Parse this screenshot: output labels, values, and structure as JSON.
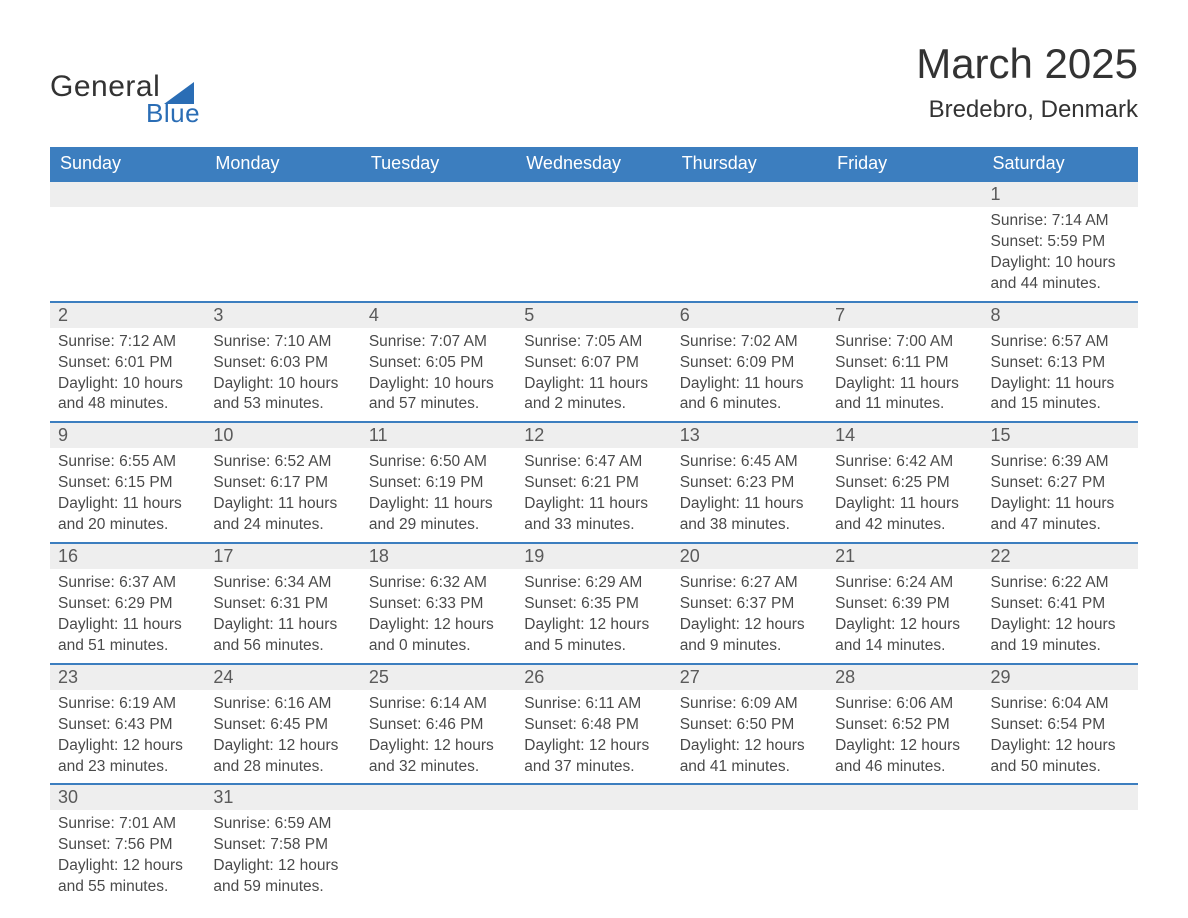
{
  "logo": {
    "text_main": "General",
    "text_sub": "Blue",
    "shape_color": "#2a6db5"
  },
  "title": "March 2025",
  "subtitle": "Bredebro, Denmark",
  "colors": {
    "header_bg": "#3c7ebf",
    "header_text": "#ffffff",
    "daynum_bg": "#eeeeee",
    "row_border": "#3c7ebf",
    "body_text": "#4a4a4a",
    "title_text": "#333333",
    "page_bg": "#ffffff"
  },
  "typography": {
    "title_fontsize": 42,
    "subtitle_fontsize": 24,
    "header_fontsize": 18,
    "daynum_fontsize": 18,
    "detail_fontsize": 15.5,
    "font_family": "Arial"
  },
  "day_headers": [
    "Sunday",
    "Monday",
    "Tuesday",
    "Wednesday",
    "Thursday",
    "Friday",
    "Saturday"
  ],
  "weeks": [
    [
      null,
      null,
      null,
      null,
      null,
      null,
      {
        "num": "1",
        "sunrise": "Sunrise: 7:14 AM",
        "sunset": "Sunset: 5:59 PM",
        "day1": "Daylight: 10 hours",
        "day2": "and 44 minutes."
      }
    ],
    [
      {
        "num": "2",
        "sunrise": "Sunrise: 7:12 AM",
        "sunset": "Sunset: 6:01 PM",
        "day1": "Daylight: 10 hours",
        "day2": "and 48 minutes."
      },
      {
        "num": "3",
        "sunrise": "Sunrise: 7:10 AM",
        "sunset": "Sunset: 6:03 PM",
        "day1": "Daylight: 10 hours",
        "day2": "and 53 minutes."
      },
      {
        "num": "4",
        "sunrise": "Sunrise: 7:07 AM",
        "sunset": "Sunset: 6:05 PM",
        "day1": "Daylight: 10 hours",
        "day2": "and 57 minutes."
      },
      {
        "num": "5",
        "sunrise": "Sunrise: 7:05 AM",
        "sunset": "Sunset: 6:07 PM",
        "day1": "Daylight: 11 hours",
        "day2": "and 2 minutes."
      },
      {
        "num": "6",
        "sunrise": "Sunrise: 7:02 AM",
        "sunset": "Sunset: 6:09 PM",
        "day1": "Daylight: 11 hours",
        "day2": "and 6 minutes."
      },
      {
        "num": "7",
        "sunrise": "Sunrise: 7:00 AM",
        "sunset": "Sunset: 6:11 PM",
        "day1": "Daylight: 11 hours",
        "day2": "and 11 minutes."
      },
      {
        "num": "8",
        "sunrise": "Sunrise: 6:57 AM",
        "sunset": "Sunset: 6:13 PM",
        "day1": "Daylight: 11 hours",
        "day2": "and 15 minutes."
      }
    ],
    [
      {
        "num": "9",
        "sunrise": "Sunrise: 6:55 AM",
        "sunset": "Sunset: 6:15 PM",
        "day1": "Daylight: 11 hours",
        "day2": "and 20 minutes."
      },
      {
        "num": "10",
        "sunrise": "Sunrise: 6:52 AM",
        "sunset": "Sunset: 6:17 PM",
        "day1": "Daylight: 11 hours",
        "day2": "and 24 minutes."
      },
      {
        "num": "11",
        "sunrise": "Sunrise: 6:50 AM",
        "sunset": "Sunset: 6:19 PM",
        "day1": "Daylight: 11 hours",
        "day2": "and 29 minutes."
      },
      {
        "num": "12",
        "sunrise": "Sunrise: 6:47 AM",
        "sunset": "Sunset: 6:21 PM",
        "day1": "Daylight: 11 hours",
        "day2": "and 33 minutes."
      },
      {
        "num": "13",
        "sunrise": "Sunrise: 6:45 AM",
        "sunset": "Sunset: 6:23 PM",
        "day1": "Daylight: 11 hours",
        "day2": "and 38 minutes."
      },
      {
        "num": "14",
        "sunrise": "Sunrise: 6:42 AM",
        "sunset": "Sunset: 6:25 PM",
        "day1": "Daylight: 11 hours",
        "day2": "and 42 minutes."
      },
      {
        "num": "15",
        "sunrise": "Sunrise: 6:39 AM",
        "sunset": "Sunset: 6:27 PM",
        "day1": "Daylight: 11 hours",
        "day2": "and 47 minutes."
      }
    ],
    [
      {
        "num": "16",
        "sunrise": "Sunrise: 6:37 AM",
        "sunset": "Sunset: 6:29 PM",
        "day1": "Daylight: 11 hours",
        "day2": "and 51 minutes."
      },
      {
        "num": "17",
        "sunrise": "Sunrise: 6:34 AM",
        "sunset": "Sunset: 6:31 PM",
        "day1": "Daylight: 11 hours",
        "day2": "and 56 minutes."
      },
      {
        "num": "18",
        "sunrise": "Sunrise: 6:32 AM",
        "sunset": "Sunset: 6:33 PM",
        "day1": "Daylight: 12 hours",
        "day2": "and 0 minutes."
      },
      {
        "num": "19",
        "sunrise": "Sunrise: 6:29 AM",
        "sunset": "Sunset: 6:35 PM",
        "day1": "Daylight: 12 hours",
        "day2": "and 5 minutes."
      },
      {
        "num": "20",
        "sunrise": "Sunrise: 6:27 AM",
        "sunset": "Sunset: 6:37 PM",
        "day1": "Daylight: 12 hours",
        "day2": "and 9 minutes."
      },
      {
        "num": "21",
        "sunrise": "Sunrise: 6:24 AM",
        "sunset": "Sunset: 6:39 PM",
        "day1": "Daylight: 12 hours",
        "day2": "and 14 minutes."
      },
      {
        "num": "22",
        "sunrise": "Sunrise: 6:22 AM",
        "sunset": "Sunset: 6:41 PM",
        "day1": "Daylight: 12 hours",
        "day2": "and 19 minutes."
      }
    ],
    [
      {
        "num": "23",
        "sunrise": "Sunrise: 6:19 AM",
        "sunset": "Sunset: 6:43 PM",
        "day1": "Daylight: 12 hours",
        "day2": "and 23 minutes."
      },
      {
        "num": "24",
        "sunrise": "Sunrise: 6:16 AM",
        "sunset": "Sunset: 6:45 PM",
        "day1": "Daylight: 12 hours",
        "day2": "and 28 minutes."
      },
      {
        "num": "25",
        "sunrise": "Sunrise: 6:14 AM",
        "sunset": "Sunset: 6:46 PM",
        "day1": "Daylight: 12 hours",
        "day2": "and 32 minutes."
      },
      {
        "num": "26",
        "sunrise": "Sunrise: 6:11 AM",
        "sunset": "Sunset: 6:48 PM",
        "day1": "Daylight: 12 hours",
        "day2": "and 37 minutes."
      },
      {
        "num": "27",
        "sunrise": "Sunrise: 6:09 AM",
        "sunset": "Sunset: 6:50 PM",
        "day1": "Daylight: 12 hours",
        "day2": "and 41 minutes."
      },
      {
        "num": "28",
        "sunrise": "Sunrise: 6:06 AM",
        "sunset": "Sunset: 6:52 PM",
        "day1": "Daylight: 12 hours",
        "day2": "and 46 minutes."
      },
      {
        "num": "29",
        "sunrise": "Sunrise: 6:04 AM",
        "sunset": "Sunset: 6:54 PM",
        "day1": "Daylight: 12 hours",
        "day2": "and 50 minutes."
      }
    ],
    [
      {
        "num": "30",
        "sunrise": "Sunrise: 7:01 AM",
        "sunset": "Sunset: 7:56 PM",
        "day1": "Daylight: 12 hours",
        "day2": "and 55 minutes."
      },
      {
        "num": "31",
        "sunrise": "Sunrise: 6:59 AM",
        "sunset": "Sunset: 7:58 PM",
        "day1": "Daylight: 12 hours",
        "day2": "and 59 minutes."
      },
      null,
      null,
      null,
      null,
      null
    ]
  ]
}
